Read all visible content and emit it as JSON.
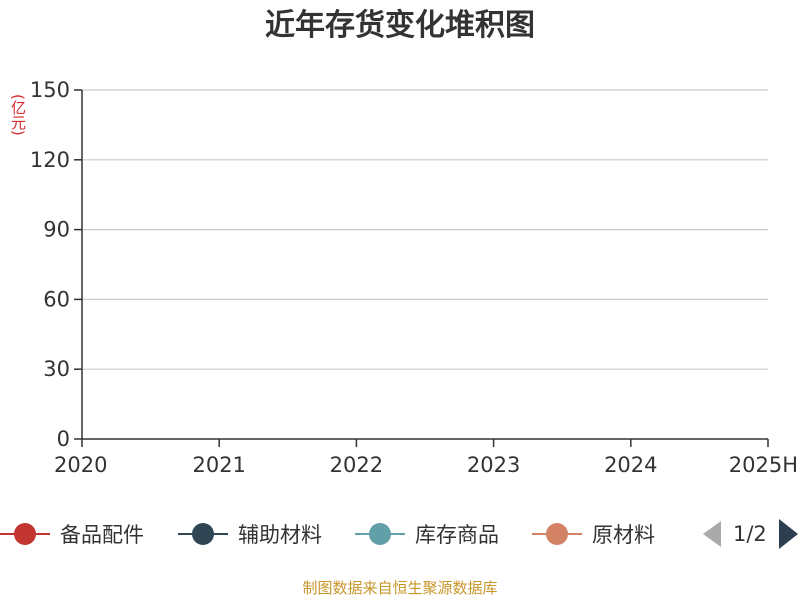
{
  "title": "近年存货变化堆积图",
  "unit": "(亿元)",
  "source": "制图数据来自恒生聚源数据库",
  "axis": {
    "y_ticks": [
      "0",
      "30",
      "60",
      "90",
      "120",
      "150"
    ],
    "x_ticks": [
      "2020",
      "2021",
      "2022",
      "2023",
      "2024",
      "2025H"
    ]
  },
  "legend": {
    "items": [
      {
        "label": "备品配件",
        "color": "#c23531"
      },
      {
        "label": "辅助材料",
        "color": "#2f4554"
      },
      {
        "label": "库存商品",
        "color": "#61a0a8"
      },
      {
        "label": "原材料",
        "color": "#d48265"
      }
    ],
    "page": "1/2"
  }
}
